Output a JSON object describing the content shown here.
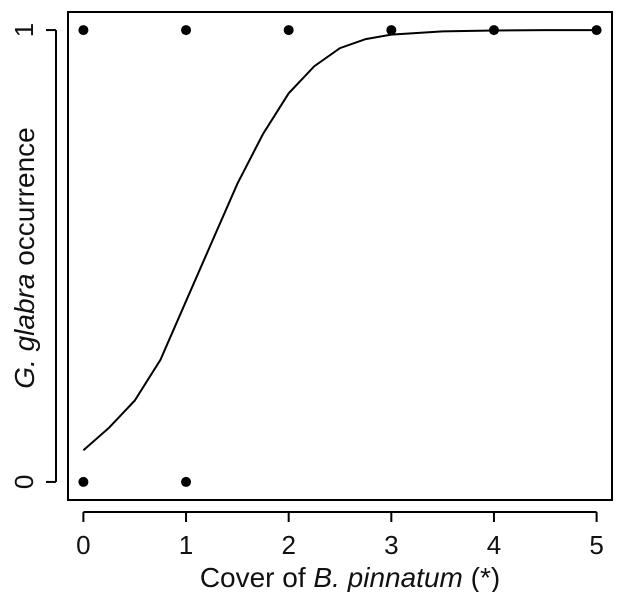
{
  "chart_data": {
    "type": "scatter",
    "xlabel": {
      "prefix": "Cover of ",
      "italic": "B. pinnatum",
      "suffix": " (*)"
    },
    "ylabel": {
      "italic": "G. glabra",
      "suffix": " occurrence"
    },
    "xlim": [
      -0.15,
      5.15
    ],
    "ylim": [
      -0.04,
      1.04
    ],
    "x_ticks": [
      0,
      1,
      2,
      3,
      4,
      5
    ],
    "x_tick_labels": [
      "0",
      "1",
      "2",
      "3",
      "4",
      "5"
    ],
    "y_ticks": [
      0,
      1
    ],
    "y_tick_labels": [
      "0",
      "1"
    ],
    "grid": false,
    "legend": "none",
    "series": [
      {
        "kind": "points",
        "x": [
          0,
          1,
          2,
          3,
          4,
          5,
          0,
          1
        ],
        "y": [
          1,
          1,
          1,
          1,
          1,
          1,
          0,
          0
        ]
      },
      {
        "kind": "fitted-curve",
        "x": [
          0,
          0.25,
          0.5,
          0.75,
          1.0,
          1.25,
          1.5,
          1.75,
          2.0,
          2.25,
          2.5,
          2.75,
          3.0,
          3.5,
          4.0,
          4.5,
          5.0
        ],
        "y": [
          0.07,
          0.12,
          0.18,
          0.27,
          0.4,
          0.53,
          0.66,
          0.77,
          0.86,
          0.92,
          0.96,
          0.98,
          0.99,
          0.997,
          0.999,
          1.0,
          1.0
        ]
      }
    ],
    "colors": {
      "points": "#000000",
      "line": "#000000",
      "axes": "#000000"
    }
  }
}
